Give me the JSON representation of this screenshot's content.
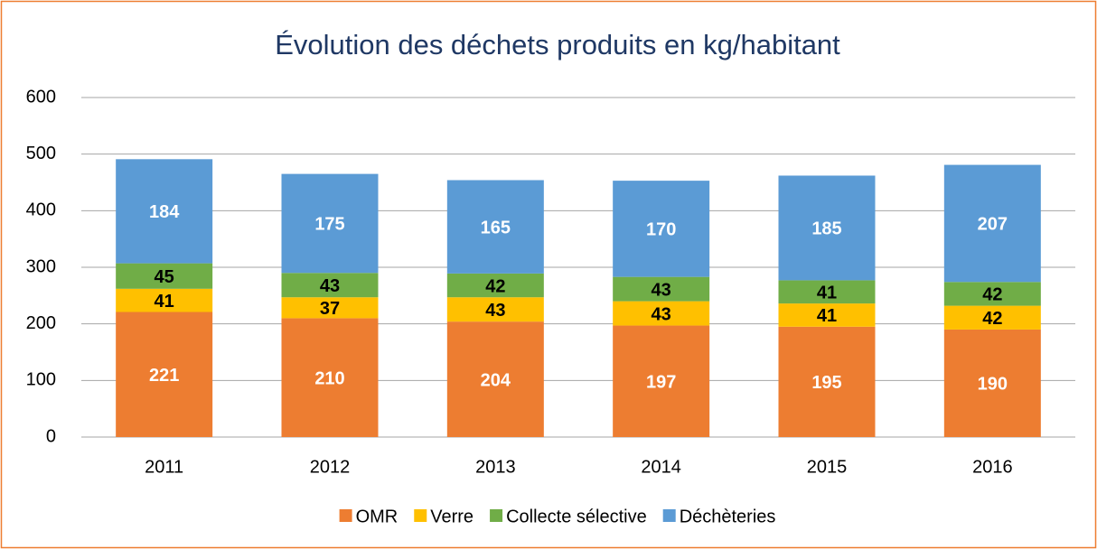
{
  "chart_data": {
    "type": "stacked_bar",
    "title": "Évolution des déchets produits en kg/habitant",
    "categories": [
      "2011",
      "2012",
      "2013",
      "2014",
      "2015",
      "2016"
    ],
    "series": [
      {
        "name": "OMR",
        "color": "#ed7d31",
        "values": [
          221,
          210,
          204,
          197,
          195,
          190
        ]
      },
      {
        "name": "Verre",
        "color": "#ffc000",
        "values": [
          41,
          37,
          43,
          43,
          41,
          42
        ]
      },
      {
        "name": "Collecte sélective",
        "color": "#70ad47",
        "values": [
          45,
          43,
          42,
          43,
          41,
          42
        ]
      },
      {
        "name": "Déchèteries",
        "color": "#5b9bd5",
        "values": [
          184,
          175,
          165,
          170,
          185,
          207
        ]
      }
    ],
    "ylim": [
      0,
      600
    ],
    "yticks": [
      0,
      100,
      200,
      300,
      400,
      500,
      600
    ],
    "grid": true,
    "legend": "bottom"
  }
}
